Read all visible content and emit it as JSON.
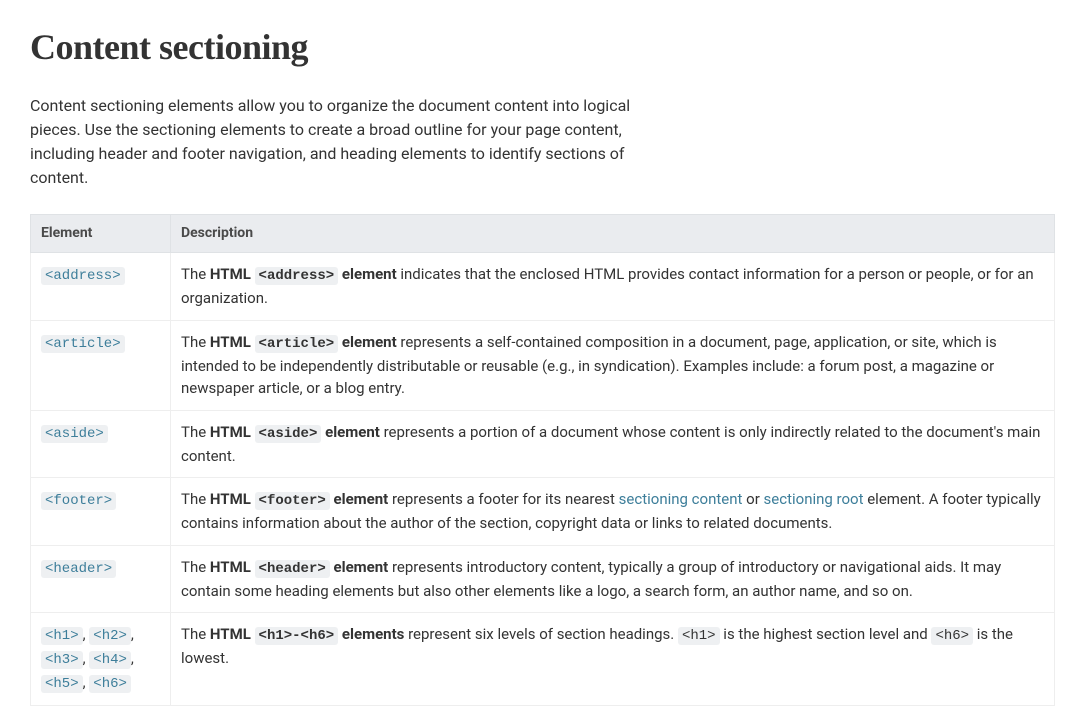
{
  "heading": "Content sectioning",
  "intro": "Content sectioning elements allow you to organize the document content into logical pieces. Use the sectioning elements to create a broad outline for your page content, including header and footer navigation, and heading elements to identify sections of content.",
  "table": {
    "columns": [
      "Element",
      "Description"
    ],
    "col_widths": [
      "140px",
      "auto"
    ],
    "header_bg": "#eaecef",
    "border_color": "#eeeeee",
    "link_color": "#3d7e9a",
    "code_bg": "#eef0f2",
    "rows": [
      {
        "elements": [
          "<address>"
        ],
        "desc_before": "The ",
        "desc_strong_prefix": "HTML ",
        "desc_code": "<address>",
        "desc_strong_suffix": " element",
        "desc_after": " indicates that the enclosed HTML provides contact information for a person or people, or for an organization.",
        "links": [],
        "trailing_codes": []
      },
      {
        "elements": [
          "<article>"
        ],
        "desc_before": "The ",
        "desc_strong_prefix": "HTML ",
        "desc_code": "<article>",
        "desc_strong_suffix": " element",
        "desc_after": " represents a self-contained composition in a document, page, application, or site, which is intended to be independently distributable or reusable (e.g., in syndication). Examples include: a forum post, a magazine or newspaper article, or a blog entry.",
        "links": [],
        "trailing_codes": []
      },
      {
        "elements": [
          "<aside>"
        ],
        "desc_before": "The ",
        "desc_strong_prefix": "HTML ",
        "desc_code": "<aside>",
        "desc_strong_suffix": " element",
        "desc_after": " represents a portion of a document whose content is only indirectly related to the document's main content.",
        "links": [],
        "trailing_codes": []
      },
      {
        "elements": [
          "<footer>"
        ],
        "desc_before": "The ",
        "desc_strong_prefix": "HTML ",
        "desc_code": "<footer>",
        "desc_strong_suffix": " element",
        "desc_after": " represents a footer for its nearest ",
        "links": [
          {
            "text": "sectioning content",
            "after": " or "
          },
          {
            "text": "sectioning root",
            "after": " element. A footer typically contains information about the author of the section, copyright data or links to related documents."
          }
        ],
        "trailing_codes": []
      },
      {
        "elements": [
          "<header>"
        ],
        "desc_before": "The ",
        "desc_strong_prefix": "HTML ",
        "desc_code": "<header>",
        "desc_strong_suffix": " element",
        "desc_after": " represents introductory content, typically a group of introductory or navigational aids. It may contain some heading elements but also other elements like a logo, a search form, an author name, and so on.",
        "links": [],
        "trailing_codes": []
      },
      {
        "elements": [
          "<h1>",
          "<h2>",
          "<h3>",
          "<h4>",
          "<h5>",
          "<h6>"
        ],
        "desc_before": "The ",
        "desc_strong_prefix": "HTML ",
        "desc_code": "<h1>-<h6>",
        "desc_strong_suffix": " elements",
        "desc_after": " represent six levels of section headings. ",
        "links": [],
        "trailing_codes": [
          {
            "code": "<h1>",
            "after": " is the highest section level and "
          },
          {
            "code": "<h6>",
            "after": " is the lowest."
          }
        ]
      }
    ]
  }
}
